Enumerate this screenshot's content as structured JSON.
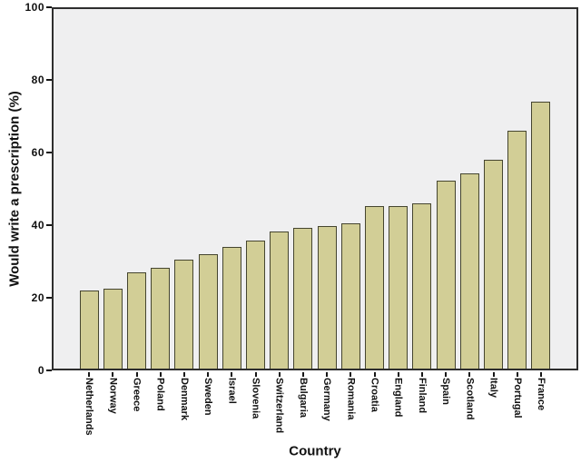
{
  "chart_data": {
    "type": "bar",
    "title": "",
    "xlabel": "Country",
    "ylabel": "Would write a prescription (%)",
    "ylim": [
      0,
      100
    ],
    "yticks": [
      0,
      20,
      40,
      60,
      80,
      100
    ],
    "grid": false,
    "legend": "none",
    "categories": [
      "Netherlands",
      "Norway",
      "Greece",
      "Poland",
      "Denmark",
      "Sweden",
      "Israel",
      "Slovenia",
      "Switzerland",
      "Bulgaria",
      "Germany",
      "Romania",
      "Croatia",
      "England",
      "Finland",
      "Spain",
      "Scotland",
      "Italy",
      "Portugal",
      "France"
    ],
    "values": [
      21.7,
      22.2,
      26.8,
      28.1,
      30.4,
      31.9,
      33.8,
      35.6,
      38.1,
      39.2,
      39.6,
      40.4,
      45.1,
      45.3,
      45.9,
      52.3,
      54.3,
      58.1,
      66.2,
      74.2
    ],
    "bar_color": "#d2ce96",
    "bar_border_color": "#45452f",
    "plot_bg": "#efeff0",
    "axis_color": "#2e2e2e",
    "text_color": "#111111"
  }
}
